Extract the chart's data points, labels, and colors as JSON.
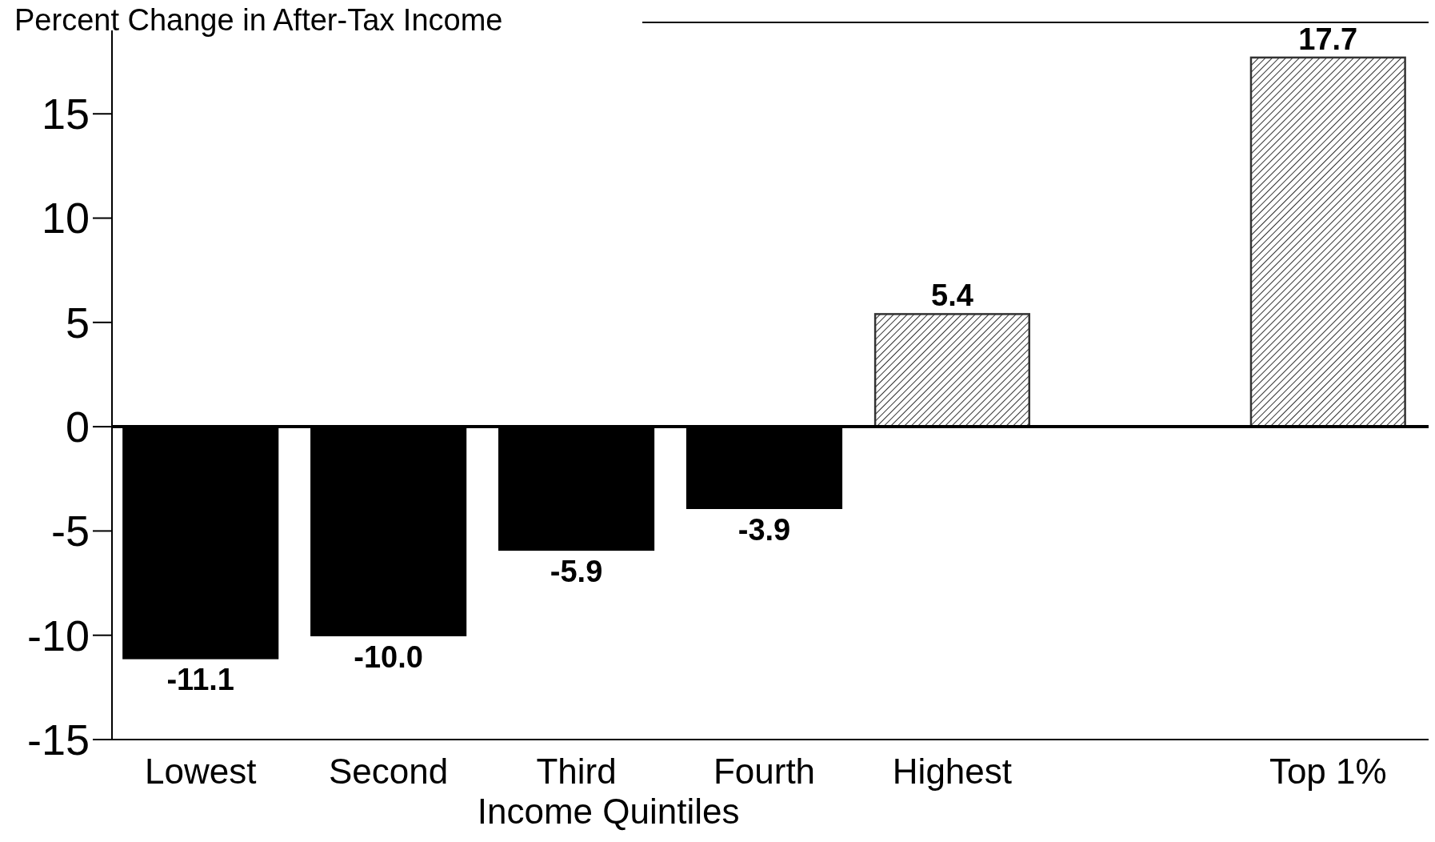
{
  "chart_data": {
    "type": "bar",
    "ylabel": "Percent Change in After-Tax Income",
    "xlabel": "Income Quintiles",
    "categories": [
      "Lowest",
      "Second",
      "Third",
      "Fourth",
      "Highest",
      null,
      "Top 1%"
    ],
    "values": [
      -11.1,
      -10.0,
      -5.9,
      -3.9,
      5.4,
      null,
      17.7
    ],
    "colors": [
      "#000000",
      "#000000",
      "#000000",
      "#000000",
      "#333333",
      null,
      "#333333"
    ],
    "value_labels": [
      "-11.1",
      "-10.0",
      "-5.9",
      "-3.9",
      "5.4",
      null,
      "17.7"
    ],
    "ylim": [
      -15,
      19
    ],
    "yticks": [
      -15,
      -10,
      -5,
      0,
      5,
      10,
      15
    ]
  }
}
